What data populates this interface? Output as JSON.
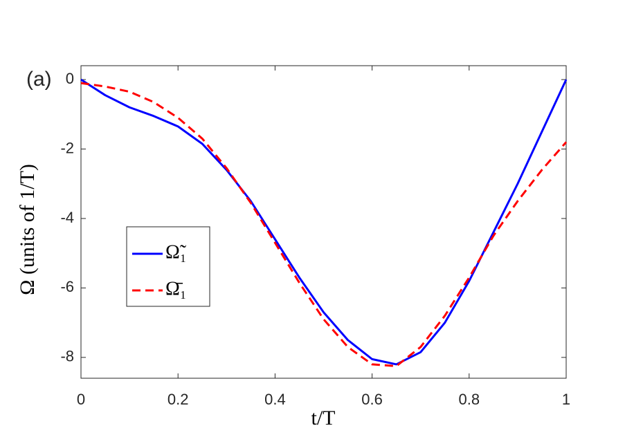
{
  "chart_data": {
    "type": "line",
    "annotation": "(a)",
    "x_label": "t/T",
    "y_label": "Ω  (units of 1/T)",
    "x": [
      0,
      0.05,
      0.1,
      0.15,
      0.2,
      0.25,
      0.3,
      0.35,
      0.4,
      0.45,
      0.5,
      0.55,
      0.6,
      0.65,
      0.7,
      0.75,
      0.8,
      0.85,
      0.9,
      0.95,
      1
    ],
    "series": [
      {
        "name": "Ω̃₁",
        "color": "#0000ff",
        "dash": false,
        "values": [
          0,
          -0.45,
          -0.8,
          -1.05,
          -1.35,
          -1.85,
          -2.6,
          -3.5,
          -4.6,
          -5.7,
          -6.7,
          -7.5,
          -8.05,
          -8.2,
          -7.85,
          -7.0,
          -5.8,
          -4.4,
          -3.0,
          -1.5,
          0
        ]
      },
      {
        "name": "Ω̄₁",
        "color": "#ff0000",
        "dash": true,
        "values": [
          -0.1,
          -0.2,
          -0.35,
          -0.65,
          -1.1,
          -1.7,
          -2.55,
          -3.55,
          -4.7,
          -5.85,
          -6.9,
          -7.7,
          -8.2,
          -8.25,
          -7.7,
          -6.8,
          -5.7,
          -4.5,
          -3.5,
          -2.6,
          -1.8
        ]
      }
    ],
    "xlim": [
      0,
      1
    ],
    "xticks": [
      0,
      0.2,
      0.4,
      0.6,
      0.8,
      1
    ],
    "ylim": [
      -8.6,
      0.4
    ],
    "yticks": [
      0,
      -2,
      -4,
      -6,
      -8
    ],
    "grid": false,
    "legend": "west"
  }
}
